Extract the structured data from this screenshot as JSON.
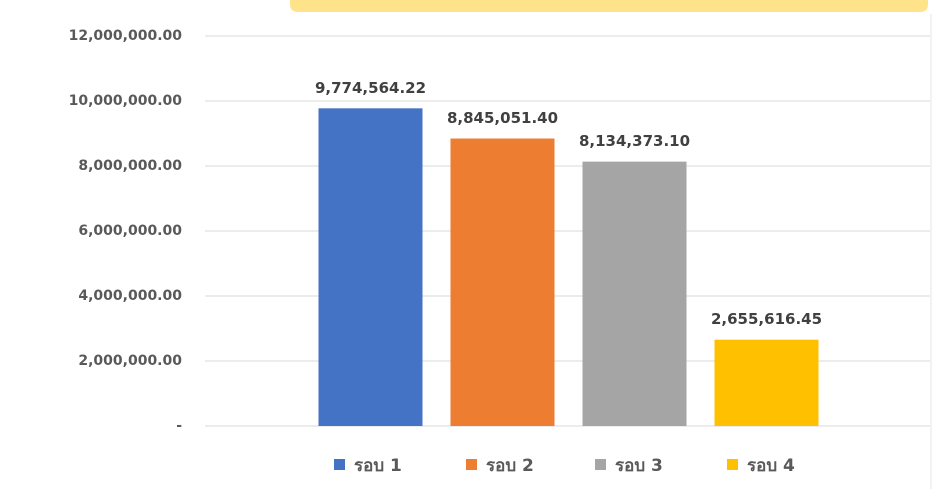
{
  "chart_data": {
    "type": "bar",
    "categories": [
      null
    ],
    "series": [
      {
        "name": "รอบ 1",
        "color": "#4472c4",
        "values": [
          9774564.22
        ],
        "value_labels": [
          "9,774,564.22"
        ]
      },
      {
        "name": "รอบ 2",
        "color": "#ed7d31",
        "values": [
          8845051.4
        ],
        "value_labels": [
          "8,845,051.40"
        ]
      },
      {
        "name": "รอบ 3",
        "color": "#a5a5a5",
        "values": [
          8134373.1
        ],
        "value_labels": [
          "8,134,373.10"
        ]
      },
      {
        "name": "รอบ 4",
        "color": "#ffc000",
        "values": [
          2655616.45
        ],
        "value_labels": [
          "2,655,616.45"
        ]
      }
    ],
    "ylim": [
      0,
      12000000
    ],
    "yticks": [
      {
        "value": 0,
        "label": "-"
      },
      {
        "value": 2000000,
        "label": "2,000,000.00"
      },
      {
        "value": 4000000,
        "label": "4,000,000.00"
      },
      {
        "value": 6000000,
        "label": "6,000,000.00"
      },
      {
        "value": 8000000,
        "label": "8,000,000.00"
      },
      {
        "value": 10000000,
        "label": "10,000,000.00"
      },
      {
        "value": 12000000,
        "label": "12,000,000.00"
      }
    ],
    "grid": true,
    "legend": "bottom"
  }
}
